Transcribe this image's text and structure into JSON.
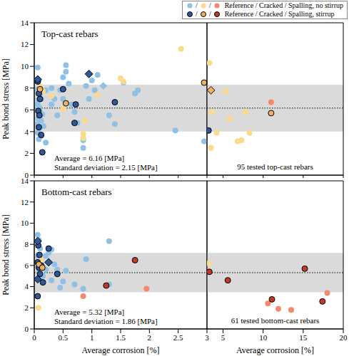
{
  "legend_rows": [
    {
      "label": "Reference / Cracked / Spalling, no stirrup",
      "separator": "/",
      "markers": [
        {
          "color": "#8fc1e6",
          "marker": "circle"
        },
        {
          "color": "#fcd98b",
          "marker": "circle"
        },
        {
          "color": "#f28a6b",
          "marker": "circle"
        }
      ]
    },
    {
      "label": "Reference / Cracked / Spalling, stirrup",
      "separator": "/",
      "markers": [
        {
          "color": "#2e5897",
          "marker": "circle_edged"
        },
        {
          "color": "#efb062",
          "marker": "circle_edged"
        },
        {
          "color": "#c0392b",
          "marker": "circle_edged"
        }
      ]
    }
  ],
  "chart_data": [
    {
      "type": "scatter",
      "title": "Top-cast rebars",
      "ylabel": "Peak bond stress [MPa]",
      "xlim": [
        0,
        3
      ],
      "xticks": [
        0,
        0.5,
        1,
        1.5,
        2,
        2.5
      ],
      "ylim": [
        0,
        14
      ],
      "yticks": [
        0,
        2,
        4,
        6,
        8,
        10,
        12,
        14
      ],
      "tick_labels": "y",
      "mean": 6.16,
      "std": 2.15,
      "annotations": [
        "Average = 6.16 [MPa]",
        "Standard deviation = 2.15 [MPa]"
      ],
      "series": [
        {
          "color": "#8fc1e6",
          "marker": "circle",
          "x": [
            0.06,
            0.08,
            0.06,
            0.1,
            0.12,
            0.07,
            0.06,
            0.09,
            0.06,
            0.1,
            0.14,
            0.07,
            0.12,
            0.06,
            0.16,
            0.08,
            0.06,
            0.12,
            0.08,
            0.2,
            0.2,
            0.3,
            0.35,
            0.4,
            0.3,
            0.45,
            0.5,
            0.55,
            0.55,
            0.6,
            0.5,
            0.65,
            0.7,
            0.75,
            0.85,
            0.85,
            0.9,
            0.95,
            1.0,
            1.05,
            1.1,
            1.3,
            1.4,
            1.55,
            1.75,
            1.8,
            2.45,
            2.95
          ],
          "values": [
            9.9,
            8.7,
            7.9,
            7.5,
            7.0,
            6.9,
            6.5,
            6.2,
            6.0,
            5.8,
            5.6,
            5.2,
            5.0,
            4.7,
            4.5,
            4.3,
            3.9,
            3.6,
            3.3,
            3.0,
            7.8,
            6.5,
            7.0,
            5.5,
            8.0,
            7.8,
            9.0,
            10.1,
            9.5,
            8.4,
            7.0,
            6.5,
            5.8,
            4.8,
            3.2,
            2.5,
            8.2,
            7.0,
            8.7,
            7.8,
            9.2,
            5.5,
            4.7,
            8.5,
            7.5,
            7.8,
            4.1,
            3.1
          ]
        },
        {
          "color": "#8fc1e6",
          "marker": "diamond",
          "x": [
            1.2
          ],
          "values": [
            8.2
          ]
        },
        {
          "color": "#fcd98b",
          "marker": "circle",
          "x": [
            0.1,
            0.15,
            0.3,
            0.5,
            0.88,
            0.85,
            0.85,
            1.1,
            1.5,
            1.55,
            2.55
          ],
          "values": [
            8.2,
            7.7,
            7.3,
            6.1,
            5.0,
            3.8,
            3.4,
            7.4,
            8.9,
            8.6,
            11.6
          ]
        },
        {
          "color": "#2e5897",
          "marker": "circle_edged",
          "x": [
            0.06,
            0.08,
            0.1,
            0.07,
            0.09,
            0.08,
            0.12,
            0.14,
            0.5,
            0.7,
            0.72,
            1.4
          ],
          "values": [
            8.6,
            7.5,
            7.0,
            5.9,
            5.5,
            4.4,
            3.7,
            2.1,
            7.9,
            4.8,
            6.5,
            6.7
          ]
        },
        {
          "color": "#2e5897",
          "marker": "diamond_edged",
          "x": [
            0.06,
            0.95
          ],
          "values": [
            8.8,
            9.3
          ]
        },
        {
          "color": "#efb062",
          "marker": "circle_edged",
          "x": [
            0.1,
            0.55,
            2.95
          ],
          "values": [
            7.9,
            6.6,
            8.5
          ]
        }
      ]
    },
    {
      "type": "scatter",
      "xlim": [
        3,
        20
      ],
      "xticks": [
        3,
        5,
        10,
        15,
        20
      ],
      "ylim": [
        0,
        14
      ],
      "yticks": [
        0,
        2,
        4,
        6,
        8,
        10,
        12,
        14
      ],
      "tick_labels": false,
      "mean": 6.16,
      "std": 2.15,
      "annotations": [
        "95 tested top-cast rebars"
      ],
      "series": [
        {
          "color": "#fcd98b",
          "marker": "circle",
          "x": [
            3.3,
            3.6,
            3.5,
            4.2,
            5.3,
            5.8,
            6.8,
            7.3,
            7.8,
            8.3
          ],
          "values": [
            10.3,
            5.8,
            2.5,
            3.9,
            7.7,
            5.2,
            3.1,
            3.2,
            5.8,
            3.9
          ]
        },
        {
          "color": "#f28a6b",
          "marker": "circle",
          "x": [
            11.0
          ],
          "values": [
            6.7
          ]
        },
        {
          "color": "#2e5897",
          "marker": "circle_edged",
          "x": [
            3.2
          ],
          "values": [
            4.1
          ]
        },
        {
          "color": "#efb062",
          "marker": "diamond_edged",
          "x": [
            3.5
          ],
          "values": [
            7.8
          ]
        },
        {
          "color": "#efb062",
          "marker": "circle_edged",
          "x": [
            11.0
          ],
          "values": [
            5.7
          ]
        }
      ]
    },
    {
      "type": "scatter",
      "title": "Bottom-cast rebars",
      "xlabel": "Average corrosion [%]",
      "ylabel": "Peak bond stress [MPa]",
      "xlim": [
        0,
        3
      ],
      "xticks": [
        0,
        0.5,
        1,
        1.5,
        2,
        2.5
      ],
      "ylim": [
        0,
        14
      ],
      "yticks": [
        0,
        2,
        4,
        6,
        8,
        10,
        12,
        14
      ],
      "tick_labels": true,
      "mean": 5.32,
      "std": 1.86,
      "annotations": [
        "Average = 5.32 [MPa]",
        "Standard deviation = 1.86 [MPa]"
      ],
      "series": [
        {
          "color": "#8fc1e6",
          "marker": "circle",
          "x": [
            0.06,
            0.08,
            0.1,
            0.06,
            0.12,
            0.07,
            0.09,
            0.15,
            0.2,
            0.25,
            0.3,
            0.35,
            0.4,
            0.45,
            0.5,
            0.55,
            0.7,
            0.85,
            0.9,
            1.3,
            1.3,
            0.2,
            0.12,
            0.3
          ],
          "values": [
            8.9,
            8.4,
            7.6,
            6.9,
            6.5,
            6.2,
            5.6,
            5.0,
            6.9,
            7.2,
            7.5,
            6.1,
            5.6,
            3.9,
            4.5,
            5.5,
            4.2,
            3.8,
            6.6,
            8.3,
            4.2,
            5.6,
            4.8,
            4.6
          ]
        },
        {
          "color": "#fcd98b",
          "marker": "circle",
          "x": [
            0.07,
            0.12,
            0.1
          ],
          "values": [
            2.0,
            6.5,
            5.2
          ]
        },
        {
          "color": "#f28a6b",
          "marker": "circle",
          "x": [
            0.85,
            1.95
          ],
          "values": [
            3.1,
            3.8
          ]
        },
        {
          "color": "#2e5897",
          "marker": "circle_edged",
          "x": [
            0.07,
            0.09,
            0.06,
            0.08,
            0.1,
            0.06,
            0.15,
            0.25,
            0.4,
            0.12
          ],
          "values": [
            7.9,
            7.0,
            6.3,
            5.8,
            5.2,
            3.1,
            4.4,
            7.6,
            5.2,
            6.0
          ]
        },
        {
          "color": "#2e5897",
          "marker": "diamond_edged",
          "x": [
            0.06,
            0.06,
            0.25
          ],
          "values": [
            8.3,
            4.7,
            6.3
          ]
        },
        {
          "color": "#efb062",
          "marker": "circle_edged",
          "x": [
            0.08,
            0.14
          ],
          "values": [
            6.1,
            5.8
          ]
        },
        {
          "color": "#c0392b",
          "marker": "circle_edged",
          "x": [
            1.25,
            1.75
          ],
          "values": [
            4.1,
            6.5
          ]
        }
      ]
    },
    {
      "type": "scatter",
      "xlabel": "Average corrosion [%]",
      "xlim": [
        3,
        20
      ],
      "xticks": [
        3,
        5,
        10,
        15,
        20
      ],
      "ylim": [
        0,
        14
      ],
      "yticks": [
        0,
        2,
        4,
        6,
        8,
        10,
        12,
        14
      ],
      "tick_labels": "x",
      "mean": 5.32,
      "std": 1.86,
      "annotations": [
        "61 tested bottom-cast rebars"
      ],
      "series": [
        {
          "color": "#fcd98b",
          "marker": "circle",
          "x": [
            3.2
          ],
          "values": [
            6.2
          ]
        },
        {
          "color": "#f28a6b",
          "marker": "circle",
          "x": [
            10.6,
            11.9,
            13.5,
            18.0
          ],
          "values": [
            2.4,
            1.9,
            1.8,
            3.4
          ]
        },
        {
          "color": "#c0392b",
          "marker": "circle_edged",
          "x": [
            3.3,
            5.6,
            11.1,
            15.2,
            17.4
          ],
          "values": [
            5.4,
            4.6,
            2.8,
            5.7,
            2.6
          ]
        }
      ]
    }
  ]
}
